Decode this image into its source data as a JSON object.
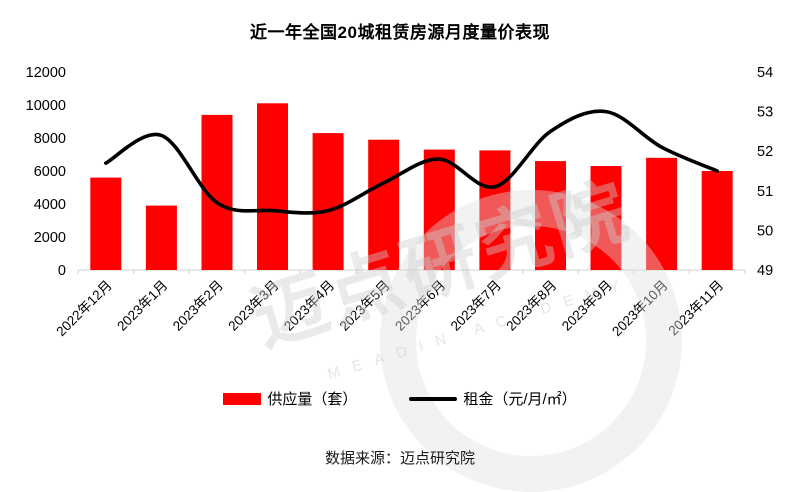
{
  "title": "近一年全国20城租赁房源月度量价表现",
  "legend": {
    "supply": "供应量（套）",
    "rent": "租金（元/月/㎡）"
  },
  "footer": {
    "source": "数据来源：迈点研究院"
  },
  "watermark": {
    "text": "迈点研究院",
    "subtext": "MEADIN ACADEMY"
  },
  "colors": {
    "bar": "#fe0000",
    "line": "#000000",
    "axis_line": "#d9d9d9",
    "label_text": "#000000"
  },
  "chart_data": {
    "type": "bar+line combo",
    "title": "近一年全国20城租赁房源月度量价表现",
    "categories": [
      "2022年12月",
      "2023年1月",
      "2023年2月",
      "2023年3月",
      "2023年4月",
      "2023年5月",
      "2023年6月",
      "2023年7月",
      "2023年8月",
      "2023年9月",
      "2023年10月",
      "2023年11月"
    ],
    "series": [
      {
        "name": "供应量（套）",
        "type": "bar",
        "axis": "left",
        "values": [
          5600,
          3900,
          9400,
          10100,
          8300,
          7900,
          7300,
          7250,
          6600,
          6300,
          6800,
          6000
        ]
      },
      {
        "name": "租金（元/月/㎡）",
        "type": "line",
        "axis": "right",
        "smooth": true,
        "values": [
          51.7,
          52.4,
          50.7,
          50.5,
          50.5,
          51.2,
          51.8,
          51.1,
          52.5,
          53.0,
          52.1,
          51.5
        ]
      }
    ],
    "left_axis": {
      "min": 0,
      "max": 12000,
      "step": 2000,
      "ticks": [
        0,
        2000,
        4000,
        6000,
        8000,
        10000,
        12000
      ]
    },
    "right_axis": {
      "min": 49,
      "max": 54,
      "step": 1,
      "ticks": [
        49,
        50,
        51,
        52,
        53,
        54
      ]
    },
    "grid": false,
    "legend_position": "bottom",
    "x_label_rotation_deg": -45
  }
}
